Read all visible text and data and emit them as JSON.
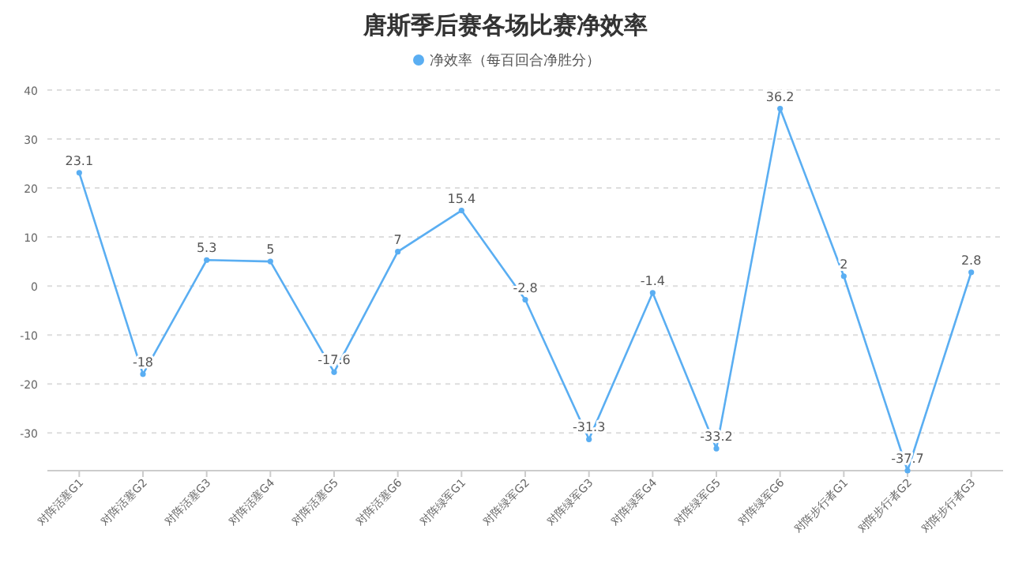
{
  "chart_data": {
    "type": "line",
    "title": "唐斯季后赛各场比赛净效率",
    "categories": [
      "对阵活塞G1",
      "对阵活塞G2",
      "对阵活塞G3",
      "对阵活塞G4",
      "对阵活塞G5",
      "对阵活塞G6",
      "对阵绿军G1",
      "对阵绿军G2",
      "对阵绿军G3",
      "对阵绿军G4",
      "对阵绿军G5",
      "对阵绿军G6",
      "对阵步行者G1",
      "对阵步行者G2",
      "对阵步行者G3"
    ],
    "series": [
      {
        "name": "净效率（每百回合净胜分）",
        "color": "#5aaef2",
        "values": [
          23.1,
          -18,
          5.3,
          5,
          -17.6,
          7,
          15.4,
          -2.8,
          -31.3,
          -1.4,
          -33.2,
          36.2,
          2,
          -37.7,
          2.8
        ]
      }
    ],
    "ylim": [
      -37.7,
      40
    ],
    "yticks": [
      -30,
      -20,
      -10,
      0,
      10,
      20,
      30,
      40
    ],
    "grid": "y",
    "legend": "top",
    "marker": "circle",
    "line_style": "solid",
    "data_labels": true
  }
}
